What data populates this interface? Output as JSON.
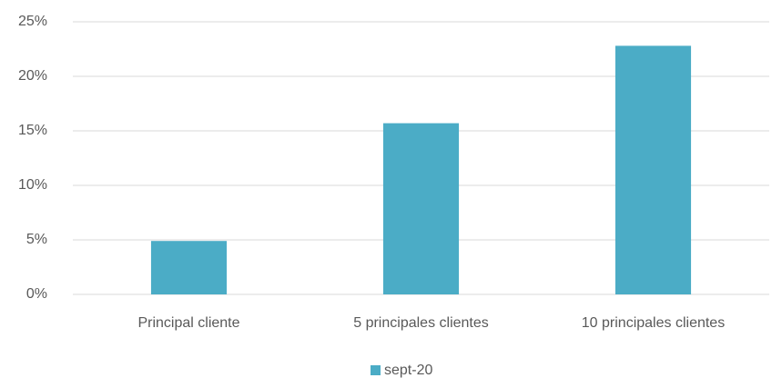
{
  "chart_data": {
    "type": "bar",
    "categories": [
      "Principal cliente",
      "5 principales clientes",
      "10 principales clientes"
    ],
    "series": [
      {
        "name": "sept-20",
        "color": "#4bacc6",
        "values": [
          4.9,
          15.7,
          22.8
        ]
      }
    ],
    "ylim": [
      0,
      25
    ],
    "yticks": [
      {
        "value": 0,
        "label": "0%"
      },
      {
        "value": 5,
        "label": "5%"
      },
      {
        "value": 10,
        "label": "10%"
      },
      {
        "value": 15,
        "label": "15%"
      },
      {
        "value": 20,
        "label": "20%"
      },
      {
        "value": 25,
        "label": "25%"
      }
    ],
    "grid": true,
    "legend": "bottom"
  }
}
